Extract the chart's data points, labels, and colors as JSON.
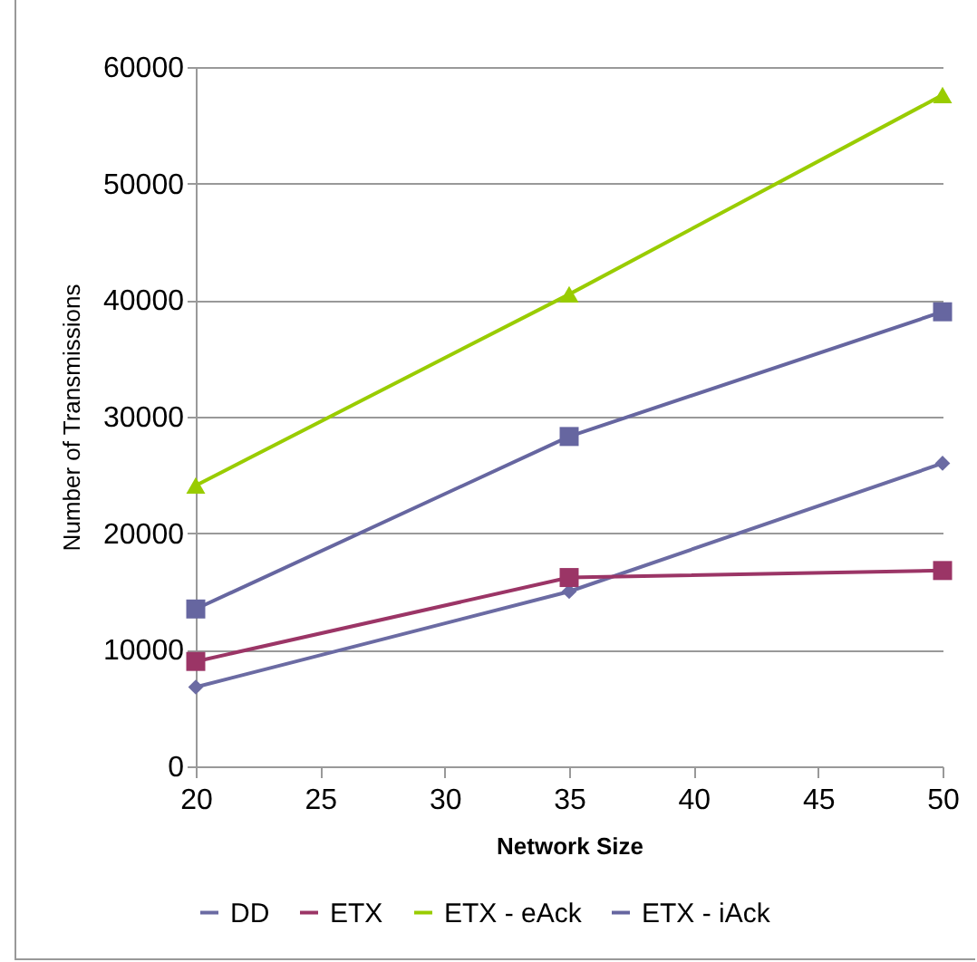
{
  "chart_data": {
    "type": "line",
    "xlabel": "Network Size",
    "ylabel": "Number of Transmissions",
    "x": [
      20,
      35,
      50
    ],
    "series": [
      {
        "name": "DD",
        "color": "#6b6ba3",
        "marker": "diamond",
        "values": [
          6800,
          15000,
          26000
        ]
      },
      {
        "name": "ETX",
        "color": "#9b3566",
        "marker": "square",
        "values": [
          9000,
          16200,
          16800
        ]
      },
      {
        "name": "ETX - eAck",
        "color": "#99cc00",
        "marker": "triangle",
        "values": [
          24100,
          40500,
          57600
        ]
      },
      {
        "name": "ETX - iAck",
        "color": "#6666a0",
        "marker": "square",
        "values": [
          13500,
          28300,
          39000
        ]
      }
    ],
    "xlim": [
      20,
      50
    ],
    "xticks": [
      20,
      25,
      30,
      35,
      40,
      45,
      50
    ],
    "ylim": [
      0,
      60000
    ],
    "yticks": [
      0,
      10000,
      20000,
      30000,
      40000,
      50000,
      60000
    ],
    "grid": "y",
    "legend": "bottom",
    "line_style": "solid"
  }
}
